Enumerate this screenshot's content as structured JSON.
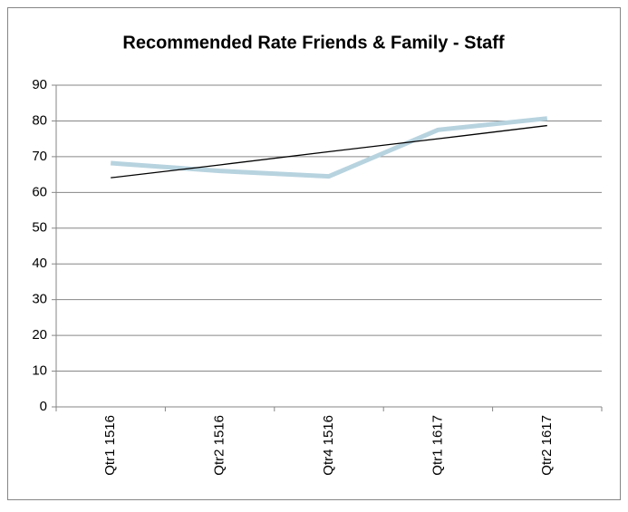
{
  "chart_data": {
    "type": "line",
    "title": "Recommended Rate Friends & Family - Staff",
    "categories": [
      "Qtr1 1516",
      "Qtr2 1516",
      "Qtr4 1516",
      "Qtr1 1617",
      "Qtr2 1617"
    ],
    "series": [
      {
        "color": "#b7d3df",
        "values": [
          68.2,
          66,
          64.5,
          77.5,
          80.7
        ]
      }
    ],
    "trendline": {
      "color": "#000000",
      "values": [
        64.1,
        67.7,
        71.4,
        75.0,
        78.7
      ]
    },
    "ylim": [
      0,
      90
    ],
    "yticks": [
      0,
      10,
      20,
      30,
      40,
      50,
      60,
      70,
      80,
      90
    ],
    "grid": true
  }
}
